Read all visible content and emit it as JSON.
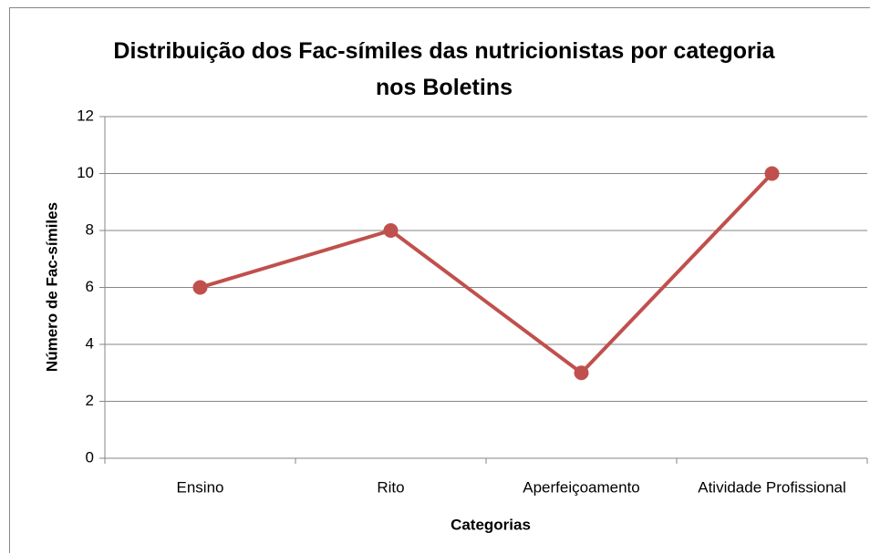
{
  "chart_data": {
    "type": "line",
    "title": "Distribuição dos Fac-símiles das nutricionistas por categoria nos Boletins",
    "x_label": "Categorias",
    "y_label": "Número de Fac-símiles",
    "categories": [
      "Ensino",
      "Rito",
      "Aperfeiçoamento",
      "Atividade Profissional"
    ],
    "values": [
      6,
      8,
      3,
      10
    ],
    "color": "#c0504d",
    "ylim": [
      0,
      12
    ],
    "yticks": [
      0,
      2,
      4,
      6,
      8,
      10,
      12
    ],
    "grid": true
  }
}
